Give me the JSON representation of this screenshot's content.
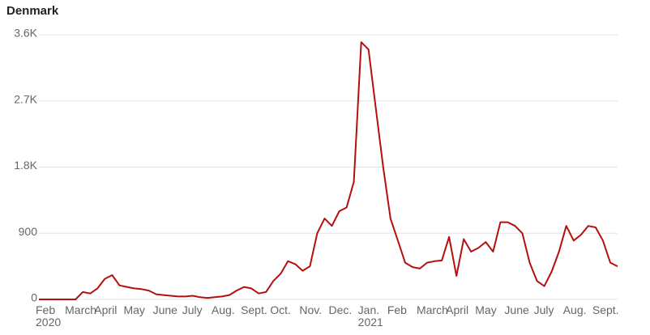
{
  "chart_data": {
    "type": "line",
    "title": "Denmark",
    "categories": [
      "Feb\n2020",
      null,
      null,
      null,
      "March",
      null,
      null,
      null,
      "April",
      null,
      null,
      null,
      "May",
      null,
      null,
      null,
      "June",
      null,
      null,
      null,
      "July",
      null,
      null,
      null,
      "Aug.",
      null,
      null,
      null,
      "Sept.",
      null,
      null,
      null,
      "Oct.",
      null,
      null,
      null,
      "Nov.",
      null,
      null,
      null,
      "Dec.",
      null,
      null,
      null,
      "Jan.\n2021",
      null,
      null,
      null,
      "Feb",
      null,
      null,
      null,
      "March",
      null,
      null,
      null,
      "April",
      null,
      null,
      null,
      "May",
      null,
      null,
      null,
      "June",
      null,
      null,
      null,
      "July",
      null,
      null,
      null,
      "Aug.",
      null,
      null,
      null,
      "Sept.",
      null,
      null,
      null
    ],
    "series": [
      {
        "color": "#b50f0f",
        "values": [
          0,
          0,
          0,
          0,
          0,
          0,
          100,
          80,
          150,
          280,
          330,
          190,
          170,
          150,
          140,
          120,
          70,
          60,
          50,
          40,
          40,
          50,
          30,
          20,
          30,
          40,
          60,
          120,
          170,
          150,
          80,
          100,
          250,
          350,
          520,
          480,
          390,
          450,
          900,
          1100,
          1000,
          1200,
          1250,
          1600,
          3500,
          3400,
          2600,
          1800,
          1100,
          800,
          500,
          440,
          420,
          500,
          520,
          530,
          850,
          320,
          820,
          650,
          700,
          780,
          650,
          1050,
          1050,
          1000,
          900,
          500,
          250,
          180,
          380,
          650,
          1000,
          800,
          880,
          1000,
          980,
          800,
          500,
          450
        ]
      }
    ],
    "ylim": [
      0,
      3600
    ],
    "yticks": [
      0,
      900,
      {
        "value": 1800,
        "label": "1.8K"
      },
      {
        "value": 2700,
        "label": "2.7K"
      },
      {
        "value": 3600,
        "label": "3.6K"
      }
    ],
    "grid": true
  }
}
